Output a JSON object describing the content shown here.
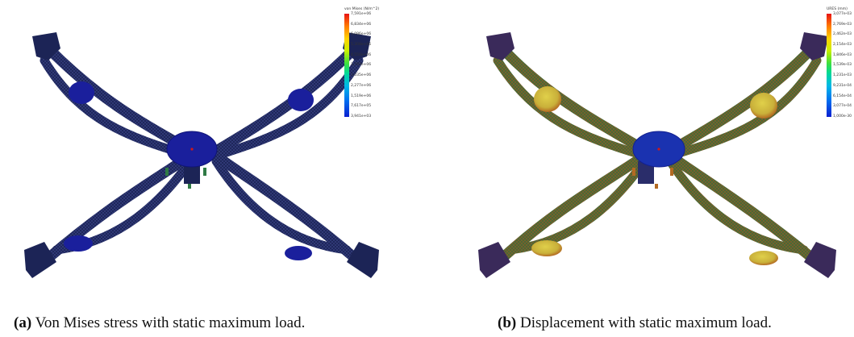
{
  "figure": {
    "panel_a": {
      "caption_label": "(a)",
      "caption_text": "Von Mises stress with static maximum load.",
      "legend_title": "von Mises (N/m^2)",
      "legend_ticks": [
        "7,591e+06",
        "6,834e+06",
        "6,086e+06",
        "5,308e+06",
        "4,550e+06",
        "3,793e+06",
        "3,035e+06",
        "2,277e+06",
        "1,519e+06",
        "7,617e+05",
        "3,941e+03"
      ],
      "palette": {
        "frame": "#1c2456",
        "body": "#1525a8",
        "accent": "#2f7a45"
      }
    },
    "panel_b": {
      "caption_label": "(b)",
      "caption_text": "Displacement with static maximum load.",
      "legend_title": "URES (mm)",
      "legend_ticks": [
        "3,077e-03",
        "2,769e-03",
        "2,462e-03",
        "2,154e-03",
        "1,846e-03",
        "1,539e-03",
        "1,231e-03",
        "9,231e-04",
        "6,154e-04",
        "3,077e-04",
        "1,000e-30"
      ],
      "palette": {
        "frame": "#3b6b3a",
        "body": "#1a32b0",
        "accent": "#c9c43a"
      }
    }
  }
}
